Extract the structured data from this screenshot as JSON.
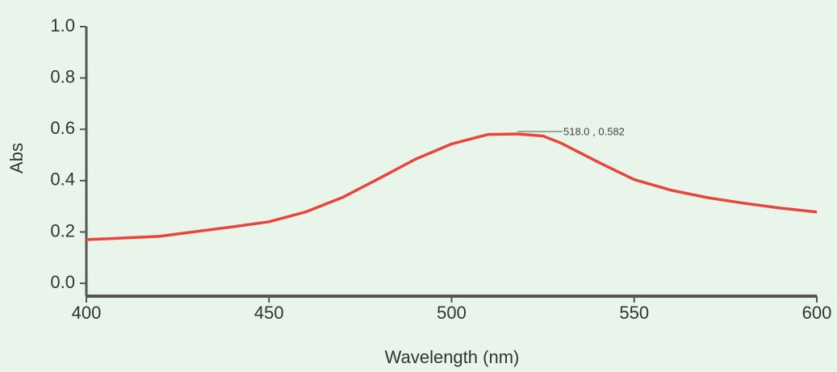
{
  "chart_data": {
    "type": "line",
    "x_label": "Wavelength (nm)",
    "y_label": "Abs",
    "x": [
      400,
      420,
      440,
      450,
      460,
      470,
      480,
      490,
      500,
      510,
      518,
      525,
      530,
      540,
      550,
      560,
      570,
      580,
      590,
      600
    ],
    "values": [
      0.17,
      0.183,
      0.22,
      0.24,
      0.278,
      0.334,
      0.407,
      0.483,
      0.543,
      0.58,
      0.582,
      0.574,
      0.546,
      0.473,
      0.404,
      0.363,
      0.334,
      0.312,
      0.293,
      0.278
    ],
    "color": "#e8463c",
    "xlim": [
      400,
      600
    ],
    "ylim": [
      -0.05,
      1.0
    ],
    "xticks": [
      400,
      450,
      500,
      550,
      600
    ],
    "yticks": [
      {
        "value": 0,
        "label": "0.0"
      },
      0.2,
      0.4,
      0.6,
      0.8,
      {
        "value": 1,
        "label": "1.0"
      }
    ],
    "annotation": "518.0 , 0.582"
  }
}
